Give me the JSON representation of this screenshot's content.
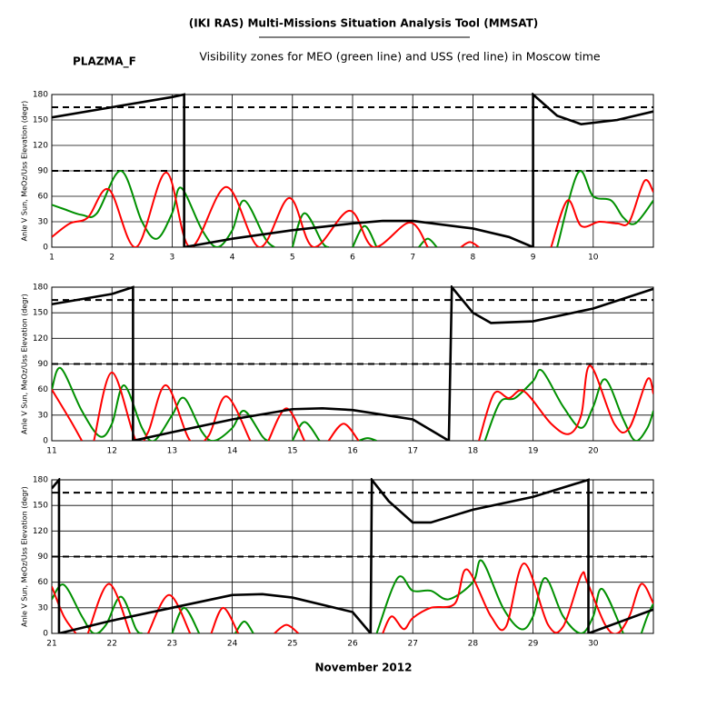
{
  "header": {
    "title": "(IKI RAS) Multi-Missions Situation Analysis Tool (MMSAT)",
    "label": "PLAZMA_F",
    "subtitle": "Visibility zones for MEO (green line) and USS (red line) in Moscow time",
    "xlabel": "November 2012"
  },
  "chart_data": [
    {
      "type": "line",
      "ylabel": "Anle V Sun, MeOz/Uss Elevation (degr)",
      "xlim": [
        1,
        11
      ],
      "xticks": [
        1,
        2,
        3,
        4,
        5,
        6,
        7,
        8,
        9,
        10
      ],
      "ylim": [
        0,
        180
      ],
      "yticks": [
        0,
        30,
        60,
        90,
        120,
        150,
        180
      ],
      "grid": true,
      "dashed_lines": [
        90,
        165
      ],
      "series": [
        {
          "color": "#000000",
          "x": [
            1,
            2,
            3,
            3.2,
            3.2,
            4,
            5,
            6,
            6.5,
            7,
            8,
            8.6,
            9,
            9,
            9.4,
            9.8,
            10.4,
            11
          ],
          "values": [
            153,
            165,
            177,
            180,
            0,
            10,
            20,
            28,
            31,
            31,
            22,
            12,
            0,
            180,
            155,
            145,
            150,
            160
          ]
        },
        {
          "color": "#009000",
          "smooth": true,
          "x": [
            1,
            1.2,
            1.5,
            1.75,
            2.15,
            2.5,
            2.75,
            3.0,
            3.15,
            3.5,
            3.75,
            4.0,
            4.2,
            4.55,
            4.7,
            null,
            5.0,
            5.2,
            5.5,
            5.6,
            null,
            6.0,
            6.2,
            6.4,
            null,
            7.1,
            7.25,
            7.4,
            null,
            9.4,
            9.75,
            10.0,
            10.3,
            10.5,
            10.7,
            11
          ],
          "values": [
            50,
            45,
            38,
            40,
            90,
            30,
            10,
            40,
            70,
            20,
            0,
            20,
            55,
            10,
            0,
            null,
            0,
            40,
            5,
            0,
            null,
            0,
            25,
            0,
            null,
            0,
            10,
            0,
            null,
            0,
            88,
            60,
            55,
            35,
            28,
            55
          ]
        },
        {
          "color": "#ff0000",
          "smooth": true,
          "x": [
            1,
            1.3,
            1.6,
            1.95,
            2.4,
            2.9,
            3.3,
            3.9,
            4.45,
            4.95,
            5.35,
            5.95,
            6.35,
            6.95,
            7.25,
            null,
            7.8,
            7.95,
            8.1,
            null,
            9.3,
            9.57,
            9.8,
            10.1,
            10.4,
            10.6,
            10.85,
            11
          ],
          "values": [
            12,
            28,
            35,
            68,
            0,
            88,
            0,
            71,
            0,
            58,
            0,
            43,
            0,
            29,
            0,
            null,
            0,
            6,
            0,
            null,
            0,
            55,
            25,
            30,
            28,
            30,
            78,
            65
          ]
        }
      ]
    },
    {
      "type": "line",
      "ylabel": "Anle V Sun, MeOz/Uss Elevation (degr)",
      "xlim": [
        11,
        21
      ],
      "xticks": [
        11,
        12,
        13,
        14,
        15,
        16,
        17,
        18,
        19,
        20
      ],
      "ylim": [
        0,
        180
      ],
      "yticks": [
        0,
        30,
        60,
        90,
        120,
        150,
        180
      ],
      "grid": true,
      "dashed_lines": [
        90,
        165
      ],
      "series": [
        {
          "color": "#000000",
          "x": [
            11,
            12,
            12.35,
            12.35,
            13,
            14,
            15,
            15.5,
            16,
            17,
            17.6,
            17.65,
            18.0,
            18.3,
            19,
            20,
            21
          ],
          "values": [
            160,
            172,
            180,
            0,
            10,
            25,
            37,
            38,
            36,
            25,
            0,
            180,
            150,
            138,
            140,
            155,
            178
          ]
        },
        {
          "color": "#009000",
          "smooth": true,
          "x": [
            11,
            11.15,
            11.5,
            11.8,
            12.0,
            12.2,
            12.5,
            12.7,
            13.0,
            13.2,
            13.5,
            13.7,
            14.0,
            14.2,
            14.5,
            14.6,
            null,
            15.0,
            15.2,
            15.45,
            null,
            16.1,
            16.25,
            16.4,
            null,
            18.2,
            18.45,
            18.7,
            19.0,
            19.15,
            19.5,
            19.8,
            20.0,
            20.2,
            20.5,
            20.7,
            20.9,
            21
          ],
          "values": [
            60,
            85,
            35,
            5,
            20,
            65,
            15,
            0,
            30,
            50,
            10,
            0,
            15,
            35,
            5,
            0,
            null,
            0,
            22,
            0,
            null,
            0,
            3,
            0,
            null,
            0,
            45,
            50,
            70,
            82,
            40,
            15,
            40,
            72,
            25,
            0,
            15,
            35
          ]
        },
        {
          "color": "#ff0000",
          "smooth": true,
          "x": [
            11,
            11.3,
            11.5,
            null,
            11.7,
            12.0,
            12.4,
            12.6,
            12.9,
            13.3,
            13.6,
            13.9,
            14.3,
            null,
            14.6,
            14.9,
            15.2,
            null,
            15.6,
            15.85,
            16.1,
            null,
            18.1,
            18.35,
            18.6,
            18.85,
            19.3,
            19.6,
            19.8,
            19.95,
            20.35,
            20.6,
            20.9,
            21
          ],
          "values": [
            60,
            25,
            0,
            null,
            0,
            80,
            0,
            10,
            65,
            0,
            5,
            52,
            0,
            null,
            0,
            38,
            0,
            null,
            0,
            20,
            0,
            null,
            0,
            55,
            50,
            58,
            20,
            8,
            30,
            88,
            20,
            15,
            72,
            55
          ]
        }
      ]
    },
    {
      "type": "line",
      "ylabel": "Anle V Sun, MeOz/Uss Elevation (degr)",
      "xlim": [
        21,
        31
      ],
      "xticks": [
        21,
        22,
        23,
        24,
        25,
        26,
        27,
        28,
        29,
        30
      ],
      "ylim": [
        0,
        180
      ],
      "yticks": [
        0,
        30,
        60,
        90,
        120,
        150,
        180
      ],
      "grid": true,
      "dashed_lines": [
        90,
        165
      ],
      "series": [
        {
          "color": "#000000",
          "x": [
            21,
            21.12,
            21.12,
            22,
            23,
            24,
            24.5,
            25,
            26,
            26.3,
            26.32,
            26.6,
            27,
            27.3,
            28,
            29,
            29.92,
            29.92,
            30.5,
            31
          ],
          "values": [
            170,
            180,
            0,
            15,
            30,
            45,
            46,
            42,
            25,
            0,
            180,
            155,
            130,
            130,
            145,
            160,
            180,
            0,
            15,
            28
          ]
        },
        {
          "color": "#009000",
          "smooth": true,
          "x": [
            21,
            21.2,
            21.5,
            21.7,
            21.9,
            22.15,
            22.4,
            22.5,
            null,
            23.0,
            23.2,
            23.45,
            null,
            24.05,
            24.2,
            24.35,
            null,
            26.4,
            26.75,
            27.0,
            27.3,
            27.6,
            28.0,
            28.15,
            28.5,
            28.8,
            29.0,
            29.2,
            29.5,
            29.8,
            30.0,
            30.15,
            30.5,
            null,
            30.8,
            30.9,
            31
          ],
          "values": [
            40,
            57,
            20,
            0,
            10,
            43,
            5,
            0,
            null,
            0,
            30,
            0,
            null,
            0,
            14,
            0,
            null,
            0,
            65,
            50,
            50,
            40,
            60,
            85,
            30,
            5,
            20,
            65,
            20,
            0,
            20,
            52,
            0,
            null,
            0,
            20,
            35
          ]
        },
        {
          "color": "#ff0000",
          "smooth": true,
          "x": [
            21,
            21.2,
            21.4,
            null,
            21.6,
            21.95,
            22.3,
            null,
            22.6,
            22.95,
            23.3,
            null,
            23.65,
            23.85,
            24.1,
            null,
            24.7,
            24.9,
            25.1,
            null,
            26.5,
            26.65,
            26.85,
            27.0,
            27.3,
            27.7,
            27.9,
            28.3,
            28.55,
            28.85,
            29.25,
            29.5,
            29.8,
            29.9,
            30.2,
            30.4,
            30.6,
            30.8,
            31
          ],
          "values": [
            55,
            20,
            0,
            null,
            0,
            58,
            0,
            null,
            0,
            45,
            0,
            null,
            0,
            30,
            0,
            null,
            0,
            10,
            0,
            null,
            0,
            20,
            5,
            18,
            30,
            35,
            75,
            20,
            8,
            82,
            10,
            8,
            68,
            60,
            10,
            0,
            20,
            58,
            35
          ]
        }
      ]
    }
  ]
}
